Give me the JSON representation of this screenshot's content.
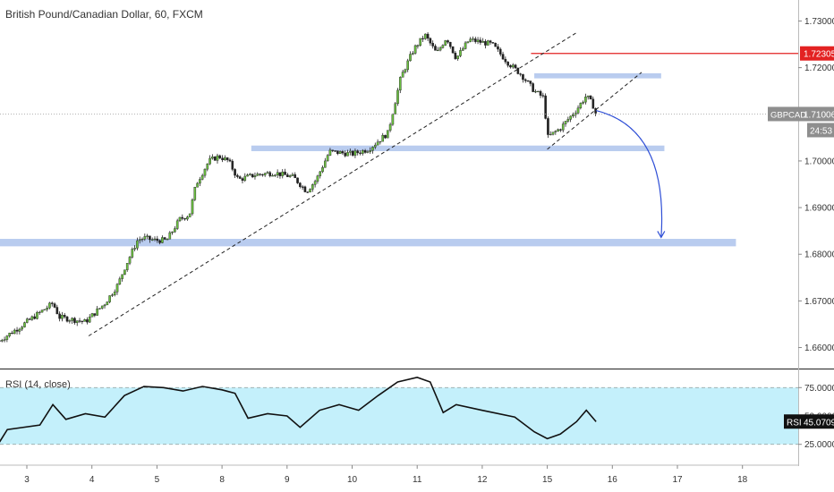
{
  "header": {
    "title": "British Pound/Canadian Dollar, 60, FXCM"
  },
  "price_axis": {
    "ticks": [
      {
        "v": 1.73,
        "label": "1.73000"
      },
      {
        "v": 1.72,
        "label": "1.72000"
      },
      {
        "v": 1.71,
        "label": "1.71000"
      },
      {
        "v": 1.7,
        "label": "1.70000"
      },
      {
        "v": 1.69,
        "label": "1.69000"
      },
      {
        "v": 1.68,
        "label": "1.68000"
      },
      {
        "v": 1.67,
        "label": "1.67000"
      },
      {
        "v": 1.66,
        "label": "1.66000"
      }
    ],
    "red_level": {
      "v": 1.72305,
      "label": "1.72305"
    },
    "current": {
      "symbol": "GBPCAD",
      "v": 1.71006,
      "label": "1.71006",
      "countdown": "24:53"
    }
  },
  "time_axis": {
    "ticks": [
      {
        "x": 0.0,
        "label": "3"
      },
      {
        "x": 1.0,
        "label": "4"
      },
      {
        "x": 2.0,
        "label": "5"
      },
      {
        "x": 3.0,
        "label": "8"
      },
      {
        "x": 4.0,
        "label": "9"
      },
      {
        "x": 5.0,
        "label": "10"
      },
      {
        "x": 6.0,
        "label": "11"
      },
      {
        "x": 7.0,
        "label": "12"
      },
      {
        "x": 8.0,
        "label": "15"
      },
      {
        "x": 9.0,
        "label": "16"
      },
      {
        "x": 10.0,
        "label": "17"
      },
      {
        "x": 11.0,
        "label": "18"
      }
    ]
  },
  "rsi": {
    "label": "RSI (14, close)",
    "ticks": [
      {
        "v": 75,
        "label": "75.0000"
      },
      {
        "v": 50,
        "label": "50.0000"
      },
      {
        "v": 25,
        "label": "25.0000"
      }
    ],
    "band": [
      25,
      75
    ],
    "current": {
      "symbol": "RSI",
      "v": 45.0709,
      "label": "45.0709"
    }
  },
  "chart_data": {
    "type": "line",
    "title": "British Pound/Canadian Dollar, 60, FXCM",
    "x_unit": "trading day index (tick label = date)",
    "ylim": [
      1.6555,
      1.7345
    ],
    "price_path": [
      [
        -0.42,
        1.6615
      ],
      [
        -0.1,
        1.6645
      ],
      [
        0.4,
        1.6695
      ],
      [
        0.5,
        1.6665
      ],
      [
        0.9,
        1.6655
      ],
      [
        1.2,
        1.6695
      ],
      [
        1.4,
        1.6735
      ],
      [
        1.5,
        1.677
      ],
      [
        1.7,
        1.683
      ],
      [
        1.8,
        1.6835
      ],
      [
        1.95,
        1.683
      ],
      [
        2.15,
        1.683
      ],
      [
        2.35,
        1.6875
      ],
      [
        2.5,
        1.6885
      ],
      [
        2.6,
        1.695
      ],
      [
        2.8,
        1.7
      ],
      [
        2.95,
        1.701
      ],
      [
        3.1,
        1.7
      ],
      [
        3.25,
        1.696
      ],
      [
        3.5,
        1.697
      ],
      [
        3.8,
        1.6975
      ],
      [
        4.1,
        1.6965
      ],
      [
        4.3,
        1.6935
      ],
      [
        4.45,
        1.696
      ],
      [
        4.65,
        1.702
      ],
      [
        5.0,
        1.7015
      ],
      [
        5.25,
        1.7025
      ],
      [
        5.55,
        1.706
      ],
      [
        5.75,
        1.718
      ],
      [
        5.95,
        1.724
      ],
      [
        6.12,
        1.727
      ],
      [
        6.3,
        1.723
      ],
      [
        6.45,
        1.7265
      ],
      [
        6.6,
        1.722
      ],
      [
        6.8,
        1.726
      ],
      [
        7.15,
        1.725
      ],
      [
        7.4,
        1.721
      ],
      [
        7.6,
        1.7185
      ],
      [
        7.8,
        1.715
      ],
      [
        7.95,
        1.7135
      ],
      [
        8.0,
        1.705
      ],
      [
        8.2,
        1.707
      ],
      [
        8.45,
        1.711
      ],
      [
        8.6,
        1.714
      ],
      [
        8.7,
        1.712
      ],
      [
        8.75,
        1.71
      ]
    ],
    "support_zones": [
      {
        "x": [
          7.8,
          9.75
        ],
        "y": [
          1.7177,
          1.7188
        ]
      },
      {
        "x": [
          3.45,
          9.8
        ],
        "y": [
          1.7021,
          1.7033
        ]
      },
      {
        "x": [
          -0.42,
          10.9
        ],
        "y": [
          1.6817,
          1.6833
        ]
      }
    ],
    "trendlines": [
      {
        "from": [
          0.95,
          1.6625
        ],
        "to": [
          8.45,
          1.7275
        ]
      },
      {
        "from": [
          8.0,
          1.7025
        ],
        "to": [
          9.45,
          1.719
        ]
      }
    ],
    "projection": {
      "from": [
        8.75,
        1.7108
      ],
      "to": [
        9.75,
        1.6836
      ]
    },
    "rsi_ylim": [
      9,
      91
    ],
    "rsi_path": [
      [
        -0.42,
        27
      ],
      [
        -0.3,
        38
      ],
      [
        0.2,
        42
      ],
      [
        0.4,
        60
      ],
      [
        0.6,
        47
      ],
      [
        0.9,
        52
      ],
      [
        1.2,
        49
      ],
      [
        1.5,
        68
      ],
      [
        1.8,
        76
      ],
      [
        2.1,
        75
      ],
      [
        2.4,
        72
      ],
      [
        2.7,
        76
      ],
      [
        3.0,
        73
      ],
      [
        3.2,
        70
      ],
      [
        3.4,
        48
      ],
      [
        3.7,
        52
      ],
      [
        4.0,
        50
      ],
      [
        4.2,
        40
      ],
      [
        4.5,
        55
      ],
      [
        4.8,
        60
      ],
      [
        5.1,
        55
      ],
      [
        5.4,
        68
      ],
      [
        5.7,
        80
      ],
      [
        6.0,
        84
      ],
      [
        6.2,
        80
      ],
      [
        6.4,
        53
      ],
      [
        6.6,
        60
      ],
      [
        7.0,
        55
      ],
      [
        7.5,
        49
      ],
      [
        7.8,
        36
      ],
      [
        8.0,
        30
      ],
      [
        8.2,
        34
      ],
      [
        8.45,
        45
      ],
      [
        8.6,
        55
      ],
      [
        8.75,
        45
      ]
    ]
  }
}
